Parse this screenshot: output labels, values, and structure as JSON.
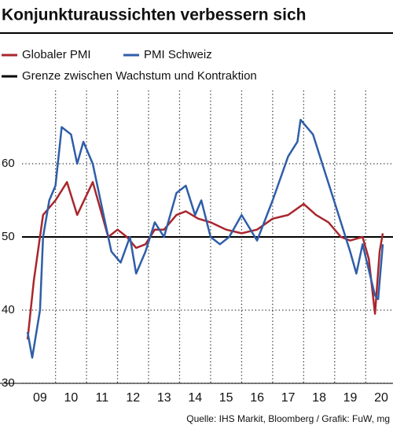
{
  "chart_data": {
    "type": "line",
    "title": "Konjunkturaussichten verbessern sich",
    "source": "Quelle: IHS Markit, Bloomberg / Grafik: FuW, mg",
    "xlim": [
      2008.92,
      2020.88
    ],
    "ylim": [
      30,
      70
    ],
    "yticks": [
      30,
      40,
      50,
      60
    ],
    "xticks": [
      {
        "value": 2009.5,
        "label": "09"
      },
      {
        "value": 2010.5,
        "label": "10"
      },
      {
        "value": 2011.5,
        "label": "11"
      },
      {
        "value": 2012.5,
        "label": "12"
      },
      {
        "value": 2013.5,
        "label": "13"
      },
      {
        "value": 2014.5,
        "label": "14"
      },
      {
        "value": 2015.5,
        "label": "15"
      },
      {
        "value": 2016.5,
        "label": "16"
      },
      {
        "value": 2017.5,
        "label": "17"
      },
      {
        "value": 2018.5,
        "label": "18"
      },
      {
        "value": 2019.5,
        "label": "19"
      },
      {
        "value": 2020.5,
        "label": "20"
      }
    ],
    "xgrid": [
      2010,
      2011,
      2012,
      2013,
      2014,
      2015,
      2016,
      2017,
      2018,
      2019,
      2020
    ],
    "grid": true,
    "reference_line": {
      "label": "Grenze zwischen Wachstum und Kontraktion",
      "value": 50,
      "color": "#000000"
    },
    "series": [
      {
        "name": "Globaler PMI",
        "color": "#a8272d",
        "x": [
          2009.1,
          2009.3,
          2009.6,
          2010.0,
          2010.37,
          2010.7,
          2011.2,
          2011.7,
          2012.0,
          2012.3,
          2012.6,
          2012.9,
          2013.2,
          2013.5,
          2013.9,
          2014.2,
          2014.6,
          2015.0,
          2015.5,
          2016.0,
          2016.5,
          2017.0,
          2017.5,
          2018.0,
          2018.4,
          2018.8,
          2019.2,
          2019.5,
          2019.9,
          2020.1,
          2020.3,
          2020.45,
          2020.55
        ],
        "values": [
          36,
          44,
          53,
          55,
          57.5,
          53,
          57.5,
          50,
          51,
          50,
          48.5,
          49,
          51,
          51,
          53,
          53.5,
          52.5,
          52,
          51,
          50.5,
          51,
          52.5,
          53,
          54.5,
          53,
          52,
          50,
          49.5,
          50,
          47,
          39.5,
          48,
          50.5
        ]
      },
      {
        "name": "PMI Schweiz",
        "color": "#2f5ea8",
        "x": [
          2009.1,
          2009.25,
          2009.5,
          2009.6,
          2009.8,
          2010.0,
          2010.2,
          2010.5,
          2010.7,
          2010.9,
          2011.2,
          2011.5,
          2011.8,
          2012.1,
          2012.4,
          2012.6,
          2012.9,
          2013.2,
          2013.5,
          2013.9,
          2014.2,
          2014.5,
          2014.7,
          2015.0,
          2015.3,
          2015.6,
          2016.0,
          2016.5,
          2017.0,
          2017.5,
          2017.8,
          2017.9,
          2018.3,
          2018.6,
          2018.9,
          2019.2,
          2019.5,
          2019.7,
          2019.9,
          2020.3,
          2020.4,
          2020.55
        ],
        "values": [
          37,
          33.5,
          40,
          50,
          55,
          57,
          65,
          64,
          60,
          63,
          60,
          54,
          48,
          46.5,
          50,
          45,
          48,
          52,
          50,
          56,
          57,
          53,
          55,
          50,
          49,
          50,
          53,
          49.5,
          55,
          61,
          63,
          66,
          64,
          60,
          56,
          52,
          48,
          45,
          49,
          42,
          41.5,
          49
        ]
      }
    ]
  }
}
